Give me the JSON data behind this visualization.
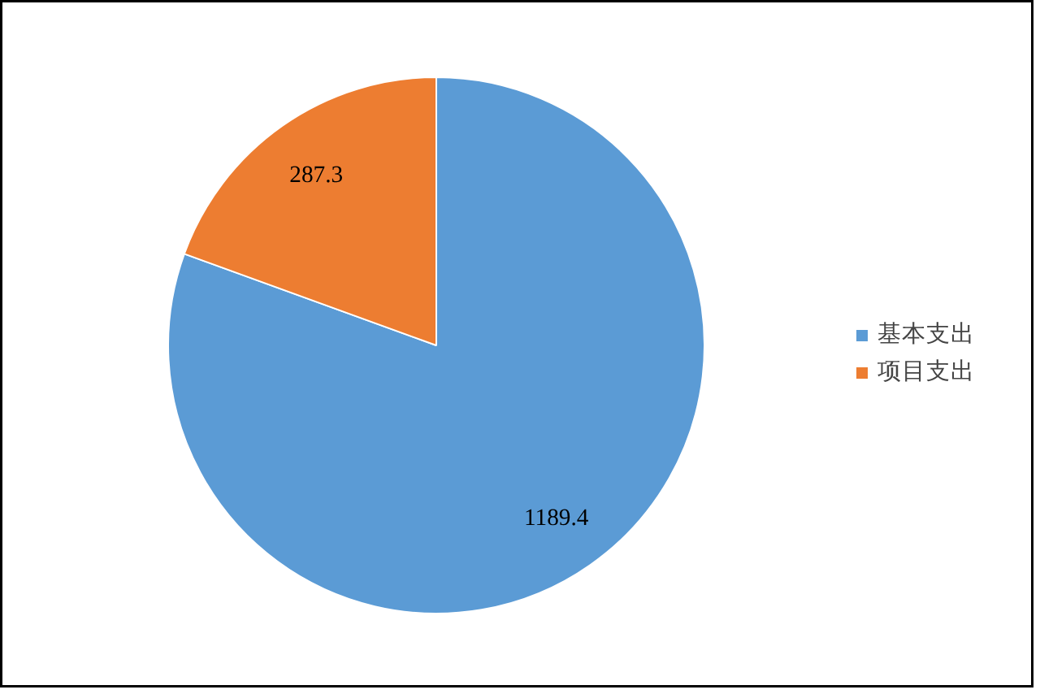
{
  "chart_data": {
    "type": "pie",
    "categories": [
      "基本支出",
      "项目支出"
    ],
    "values": [
      1189.4,
      287.3
    ],
    "colors": [
      "#5b9bd5",
      "#ed7d31"
    ],
    "data_labels": true,
    "legend": "right"
  }
}
